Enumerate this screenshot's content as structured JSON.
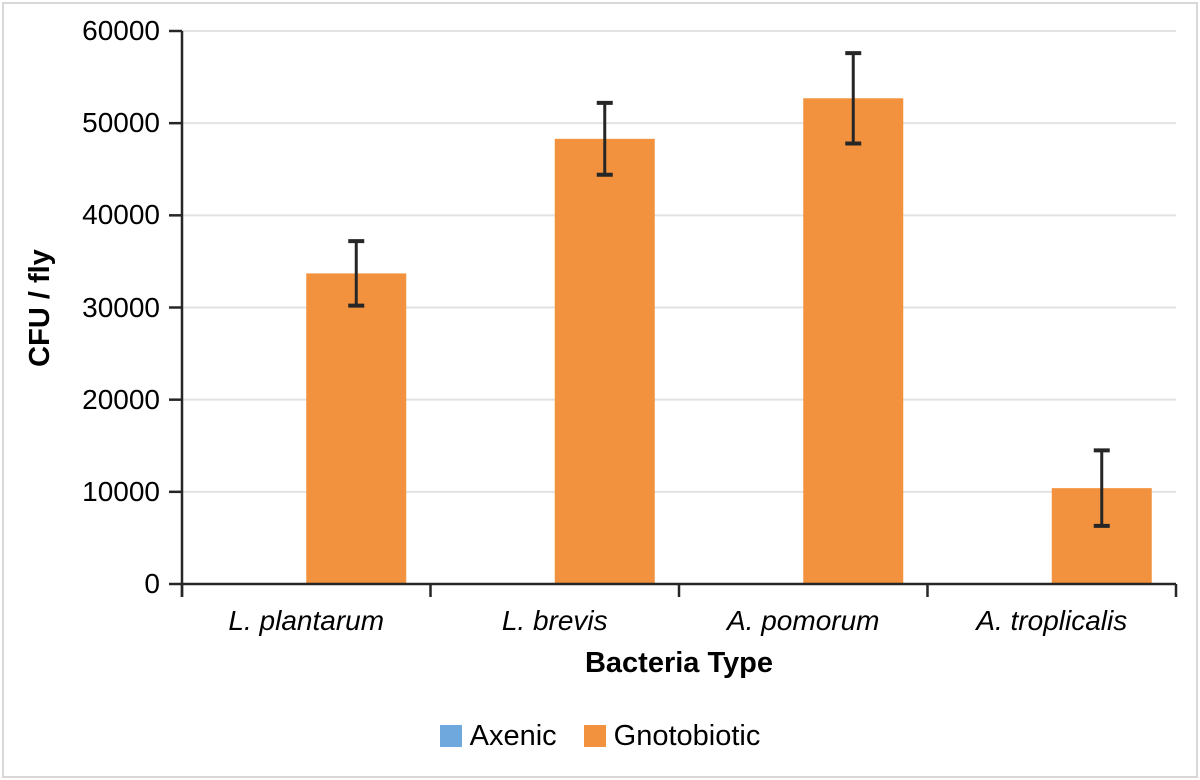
{
  "chart_data": {
    "type": "bar",
    "title": "",
    "xlabel": "Bacteria Type",
    "ylabel": "CFU / fly",
    "categories": [
      "L. plantarum",
      "L. brevis",
      "A. pomorum",
      "A. troplicalis"
    ],
    "series": [
      {
        "name": "Axenic",
        "color": "#6FA8DC",
        "values": [
          0,
          0,
          0,
          0
        ],
        "errors": [
          0,
          0,
          0,
          0
        ]
      },
      {
        "name": "Gnotobiotic",
        "color": "#F2923E",
        "values": [
          33700,
          48300,
          52700,
          10400
        ],
        "errors": [
          3500,
          3900,
          4900,
          4100
        ]
      }
    ],
    "ylim": [
      0,
      60000
    ],
    "yticks": [
      0,
      10000,
      20000,
      30000,
      40000,
      50000,
      60000
    ],
    "ytick_labels": [
      "0",
      "10000",
      "20000",
      "30000",
      "40000",
      "50000",
      "60000"
    ],
    "grid": true,
    "legend_position": "bottom",
    "category_label_style": "italic"
  },
  "styles": {
    "background": "#FFFFFF",
    "border_color": "#D8D8D8",
    "gridline_color": "#E2E2E2",
    "axis_color": "#262626",
    "error_bar_color": "#262626",
    "text_color": "#000000"
  }
}
